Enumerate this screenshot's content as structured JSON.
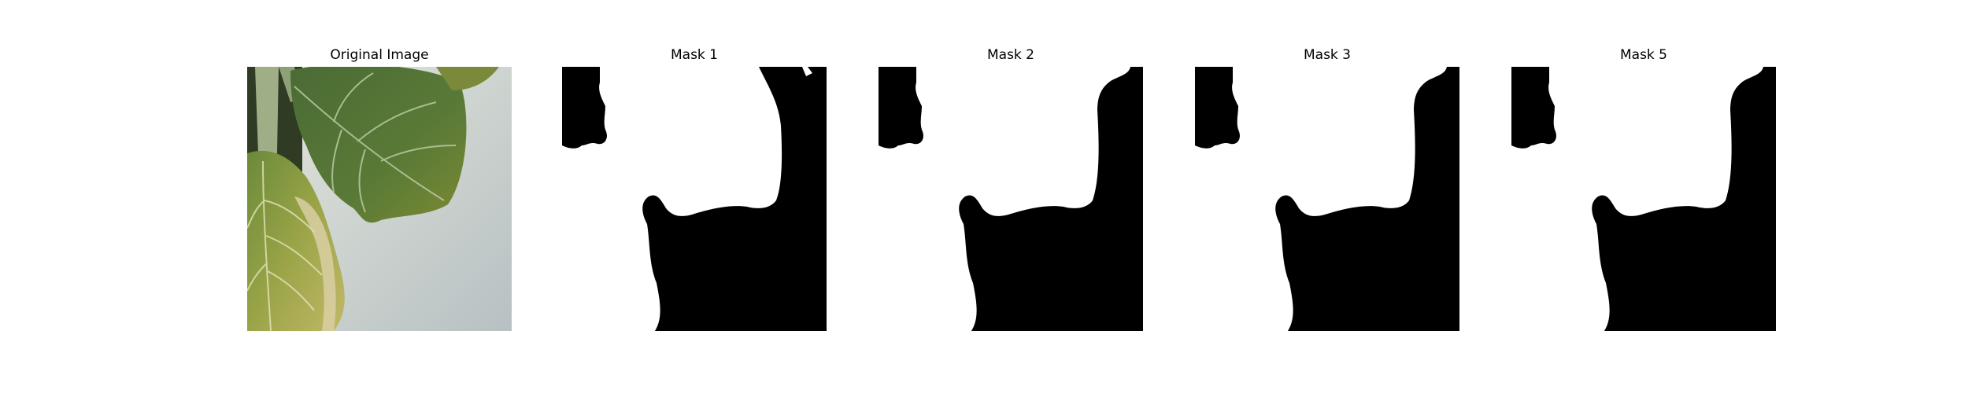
{
  "panels": [
    {
      "title": "Original Image",
      "kind": "photo"
    },
    {
      "title": "Mask 1",
      "kind": "mask"
    },
    {
      "title": "Mask 2",
      "kind": "mask"
    },
    {
      "title": "Mask 3",
      "kind": "mask"
    },
    {
      "title": "Mask 5",
      "kind": "mask"
    }
  ],
  "colors": {
    "background": "#ffffff",
    "mask_foreground": "#ffffff",
    "mask_background": "#000000",
    "leaf_dark": "#3f5a2a",
    "leaf_mid": "#6d8a3c",
    "leaf_yellow": "#b8b65a",
    "wall": "#c9d0c8"
  }
}
